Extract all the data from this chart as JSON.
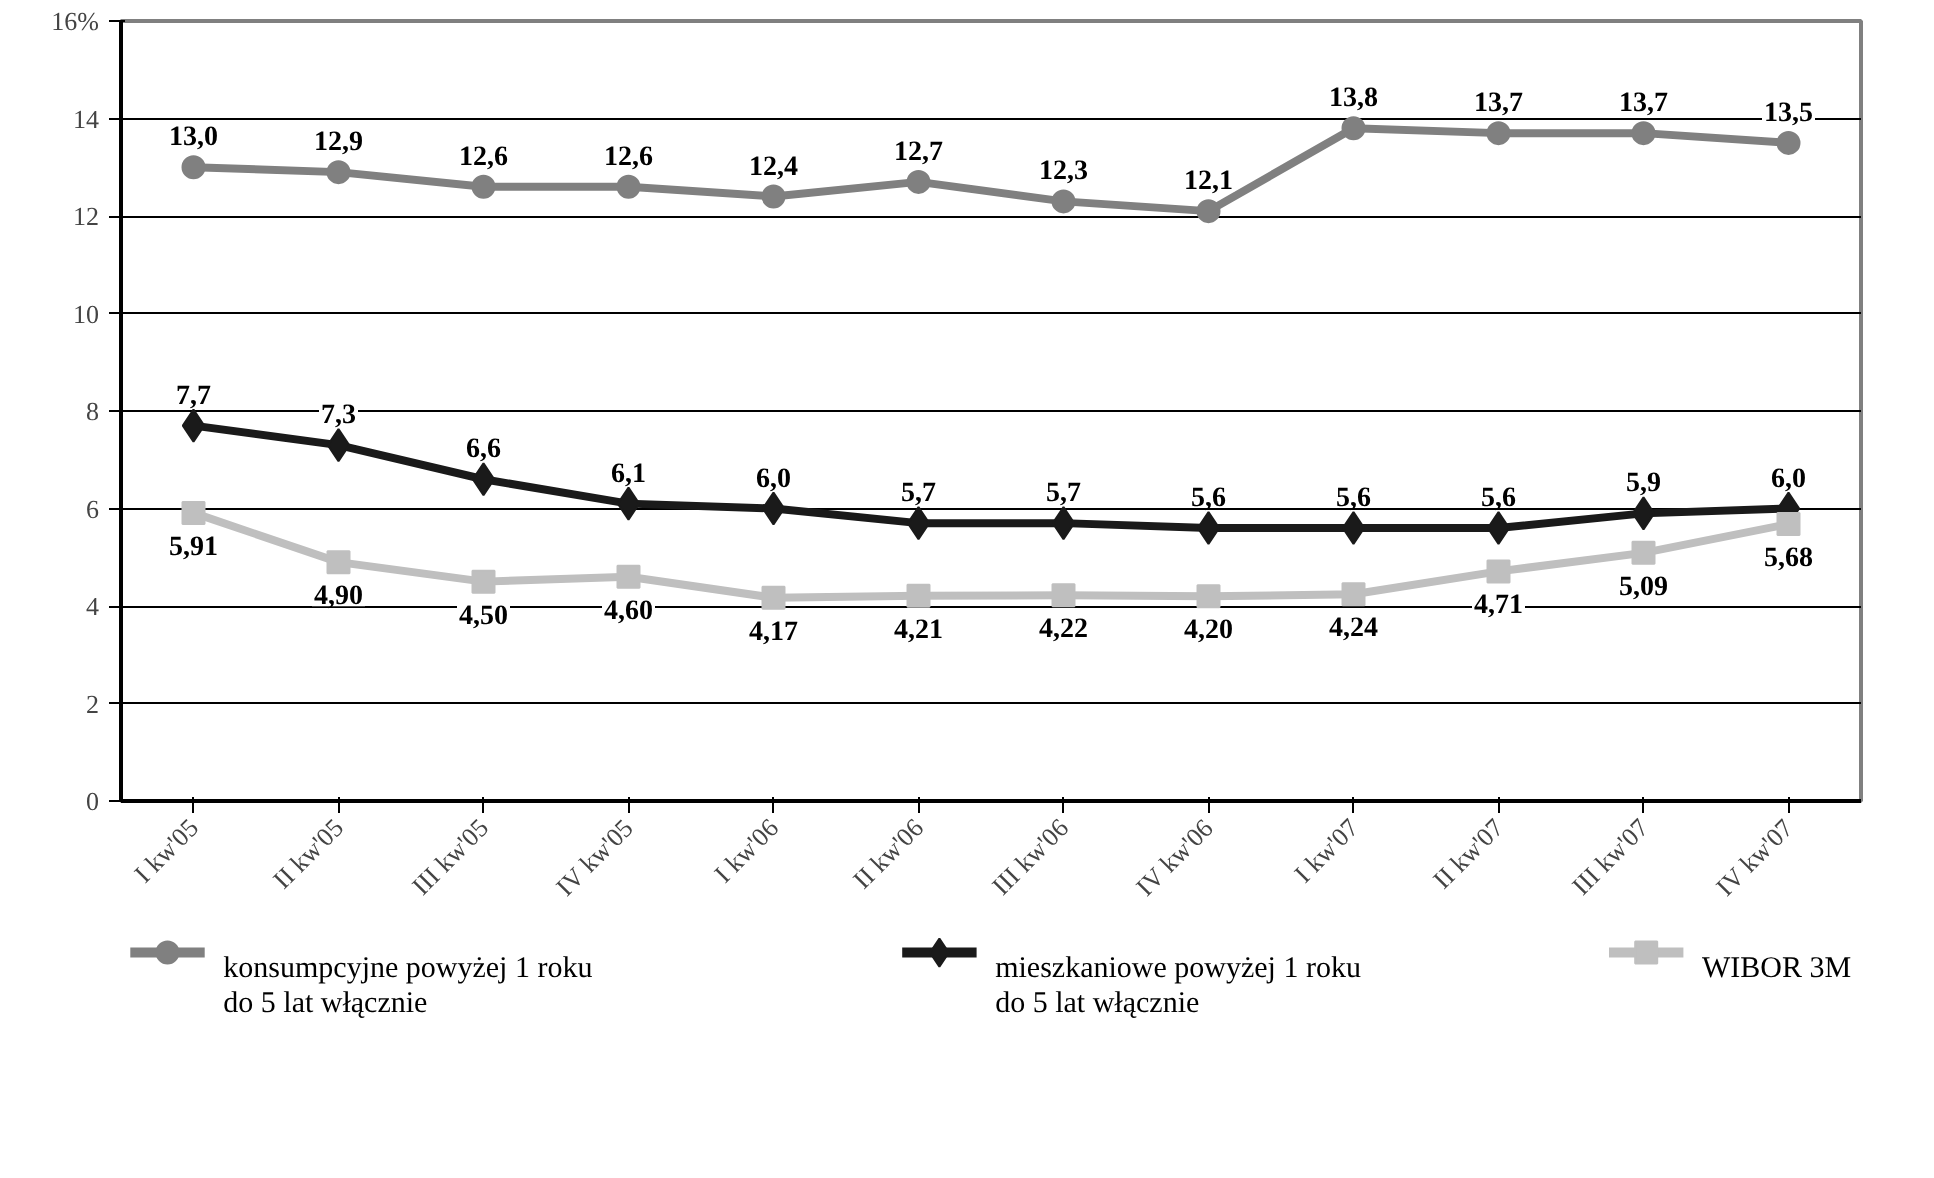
{
  "chart_data": {
    "type": "line",
    "categories": [
      "I kw'05",
      "II kw'05",
      "III kw'05",
      "IV kw'05",
      "I kw'06",
      "II kw'06",
      "III kw'06",
      "IV kw'06",
      "I kw'07",
      "II kw'07",
      "III kw'07",
      "IV kw'07"
    ],
    "ylim": [
      0,
      16
    ],
    "yticks": [
      0,
      2,
      4,
      6,
      8,
      10,
      12,
      14,
      {
        "value": 16,
        "label": "16%"
      }
    ],
    "grid": "y",
    "legend": "bottom",
    "line_style": "solid",
    "series": [
      {
        "name": "konsumpcyjne powyżej 1 roku\ndo 5 lat włącznie",
        "color": "#808080",
        "marker": "circle",
        "values": [
          13.0,
          12.9,
          12.6,
          12.6,
          12.4,
          12.7,
          12.3,
          12.1,
          13.8,
          13.7,
          13.7,
          13.5
        ],
        "value_labels": [
          "13,0",
          "12,9",
          "12,6",
          "12,6",
          "12,4",
          "12,7",
          "12,3",
          "12,1",
          "13,8",
          "13,7",
          "13,7",
          "13,5"
        ]
      },
      {
        "name": "mieszkaniowe powyżej 1 roku\ndo 5 lat włącznie",
        "color": "#1a1a1a",
        "marker": "diamond",
        "values": [
          7.7,
          7.3,
          6.6,
          6.1,
          6.0,
          5.7,
          5.7,
          5.6,
          5.6,
          5.6,
          5.9,
          6.0
        ],
        "value_labels": [
          "7,7",
          "7,3",
          "6,6",
          "6,1",
          "6,0",
          "5,7",
          "5,7",
          "5,6",
          "5,6",
          "5,6",
          "5,9",
          "6,0"
        ]
      },
      {
        "name": "WIBOR 3M",
        "color": "#bfbfbf",
        "marker": "square",
        "values": [
          5.91,
          4.9,
          4.5,
          4.6,
          4.17,
          4.21,
          4.22,
          4.2,
          4.24,
          4.71,
          5.09,
          5.68
        ],
        "value_labels": [
          "5,91",
          "4,90",
          "4,50",
          "4,60",
          "4,17",
          "4,21",
          "4,22",
          "4,20",
          "4,24",
          "4,71",
          "5,09",
          "5,68"
        ]
      }
    ]
  }
}
